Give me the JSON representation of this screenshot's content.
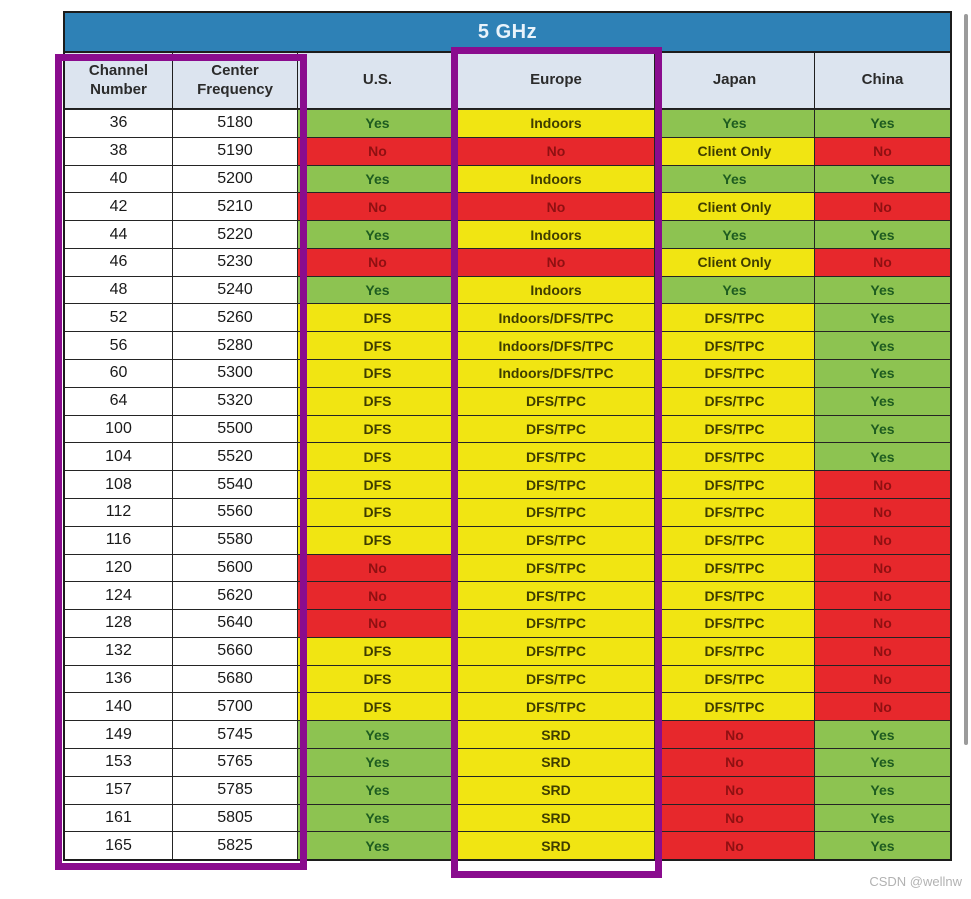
{
  "title": "5 GHz",
  "columns": [
    "Channel Number",
    "Center Frequency",
    "U.S.",
    "Europe",
    "Japan",
    "China"
  ],
  "colors": {
    "title_band_bg": "#2e81b6",
    "header_row_bg": "#dce4ef",
    "allowed_green": "#8dc351",
    "conditional_yellow": "#f1e512",
    "not_allowed_red": "#e7282c",
    "highlight_purple": "#8a0c8e"
  },
  "rows": [
    {
      "channel": "36",
      "frequency": "5180",
      "us": [
        "Yes",
        "green"
      ],
      "europe": [
        "Indoors",
        "yellow"
      ],
      "japan": [
        "Yes",
        "green"
      ],
      "china": [
        "Yes",
        "green"
      ]
    },
    {
      "channel": "38",
      "frequency": "5190",
      "us": [
        "No",
        "red"
      ],
      "europe": [
        "No",
        "red"
      ],
      "japan": [
        "Client Only",
        "yellow"
      ],
      "china": [
        "No",
        "red"
      ]
    },
    {
      "channel": "40",
      "frequency": "5200",
      "us": [
        "Yes",
        "green"
      ],
      "europe": [
        "Indoors",
        "yellow"
      ],
      "japan": [
        "Yes",
        "green"
      ],
      "china": [
        "Yes",
        "green"
      ]
    },
    {
      "channel": "42",
      "frequency": "5210",
      "us": [
        "No",
        "red"
      ],
      "europe": [
        "No",
        "red"
      ],
      "japan": [
        "Client Only",
        "yellow"
      ],
      "china": [
        "No",
        "red"
      ]
    },
    {
      "channel": "44",
      "frequency": "5220",
      "us": [
        "Yes",
        "green"
      ],
      "europe": [
        "Indoors",
        "yellow"
      ],
      "japan": [
        "Yes",
        "green"
      ],
      "china": [
        "Yes",
        "green"
      ]
    },
    {
      "channel": "46",
      "frequency": "5230",
      "us": [
        "No",
        "red"
      ],
      "europe": [
        "No",
        "red"
      ],
      "japan": [
        "Client Only",
        "yellow"
      ],
      "china": [
        "No",
        "red"
      ]
    },
    {
      "channel": "48",
      "frequency": "5240",
      "us": [
        "Yes",
        "green"
      ],
      "europe": [
        "Indoors",
        "yellow"
      ],
      "japan": [
        "Yes",
        "green"
      ],
      "china": [
        "Yes",
        "green"
      ]
    },
    {
      "channel": "52",
      "frequency": "5260",
      "us": [
        "DFS",
        "yellow"
      ],
      "europe": [
        "Indoors/DFS/TPC",
        "yellow"
      ],
      "japan": [
        "DFS/TPC",
        "yellow"
      ],
      "china": [
        "Yes",
        "green"
      ]
    },
    {
      "channel": "56",
      "frequency": "5280",
      "us": [
        "DFS",
        "yellow"
      ],
      "europe": [
        "Indoors/DFS/TPC",
        "yellow"
      ],
      "japan": [
        "DFS/TPC",
        "yellow"
      ],
      "china": [
        "Yes",
        "green"
      ]
    },
    {
      "channel": "60",
      "frequency": "5300",
      "us": [
        "DFS",
        "yellow"
      ],
      "europe": [
        "Indoors/DFS/TPC",
        "yellow"
      ],
      "japan": [
        "DFS/TPC",
        "yellow"
      ],
      "china": [
        "Yes",
        "green"
      ]
    },
    {
      "channel": "64",
      "frequency": "5320",
      "us": [
        "DFS",
        "yellow"
      ],
      "europe": [
        "DFS/TPC",
        "yellow"
      ],
      "japan": [
        "DFS/TPC",
        "yellow"
      ],
      "china": [
        "Yes",
        "green"
      ]
    },
    {
      "channel": "100",
      "frequency": "5500",
      "us": [
        "DFS",
        "yellow"
      ],
      "europe": [
        "DFS/TPC",
        "yellow"
      ],
      "japan": [
        "DFS/TPC",
        "yellow"
      ],
      "china": [
        "Yes",
        "green"
      ]
    },
    {
      "channel": "104",
      "frequency": "5520",
      "us": [
        "DFS",
        "yellow"
      ],
      "europe": [
        "DFS/TPC",
        "yellow"
      ],
      "japan": [
        "DFS/TPC",
        "yellow"
      ],
      "china": [
        "Yes",
        "green"
      ]
    },
    {
      "channel": "108",
      "frequency": "5540",
      "us": [
        "DFS",
        "yellow"
      ],
      "europe": [
        "DFS/TPC",
        "yellow"
      ],
      "japan": [
        "DFS/TPC",
        "yellow"
      ],
      "china": [
        "No",
        "red"
      ]
    },
    {
      "channel": "112",
      "frequency": "5560",
      "us": [
        "DFS",
        "yellow"
      ],
      "europe": [
        "DFS/TPC",
        "yellow"
      ],
      "japan": [
        "DFS/TPC",
        "yellow"
      ],
      "china": [
        "No",
        "red"
      ]
    },
    {
      "channel": "116",
      "frequency": "5580",
      "us": [
        "DFS",
        "yellow"
      ],
      "europe": [
        "DFS/TPC",
        "yellow"
      ],
      "japan": [
        "DFS/TPC",
        "yellow"
      ],
      "china": [
        "No",
        "red"
      ]
    },
    {
      "channel": "120",
      "frequency": "5600",
      "us": [
        "No",
        "red"
      ],
      "europe": [
        "DFS/TPC",
        "yellow"
      ],
      "japan": [
        "DFS/TPC",
        "yellow"
      ],
      "china": [
        "No",
        "red"
      ]
    },
    {
      "channel": "124",
      "frequency": "5620",
      "us": [
        "No",
        "red"
      ],
      "europe": [
        "DFS/TPC",
        "yellow"
      ],
      "japan": [
        "DFS/TPC",
        "yellow"
      ],
      "china": [
        "No",
        "red"
      ]
    },
    {
      "channel": "128",
      "frequency": "5640",
      "us": [
        "No",
        "red"
      ],
      "europe": [
        "DFS/TPC",
        "yellow"
      ],
      "japan": [
        "DFS/TPC",
        "yellow"
      ],
      "china": [
        "No",
        "red"
      ]
    },
    {
      "channel": "132",
      "frequency": "5660",
      "us": [
        "DFS",
        "yellow"
      ],
      "europe": [
        "DFS/TPC",
        "yellow"
      ],
      "japan": [
        "DFS/TPC",
        "yellow"
      ],
      "china": [
        "No",
        "red"
      ]
    },
    {
      "channel": "136",
      "frequency": "5680",
      "us": [
        "DFS",
        "yellow"
      ],
      "europe": [
        "DFS/TPC",
        "yellow"
      ],
      "japan": [
        "DFS/TPC",
        "yellow"
      ],
      "china": [
        "No",
        "red"
      ]
    },
    {
      "channel": "140",
      "frequency": "5700",
      "us": [
        "DFS",
        "yellow"
      ],
      "europe": [
        "DFS/TPC",
        "yellow"
      ],
      "japan": [
        "DFS/TPC",
        "yellow"
      ],
      "china": [
        "No",
        "red"
      ]
    },
    {
      "channel": "149",
      "frequency": "5745",
      "us": [
        "Yes",
        "green"
      ],
      "europe": [
        "SRD",
        "yellow"
      ],
      "japan": [
        "No",
        "red"
      ],
      "china": [
        "Yes",
        "green"
      ]
    },
    {
      "channel": "153",
      "frequency": "5765",
      "us": [
        "Yes",
        "green"
      ],
      "europe": [
        "SRD",
        "yellow"
      ],
      "japan": [
        "No",
        "red"
      ],
      "china": [
        "Yes",
        "green"
      ]
    },
    {
      "channel": "157",
      "frequency": "5785",
      "us": [
        "Yes",
        "green"
      ],
      "europe": [
        "SRD",
        "yellow"
      ],
      "japan": [
        "No",
        "red"
      ],
      "china": [
        "Yes",
        "green"
      ]
    },
    {
      "channel": "161",
      "frequency": "5805",
      "us": [
        "Yes",
        "green"
      ],
      "europe": [
        "SRD",
        "yellow"
      ],
      "japan": [
        "No",
        "red"
      ],
      "china": [
        "Yes",
        "green"
      ]
    },
    {
      "channel": "165",
      "frequency": "5825",
      "us": [
        "Yes",
        "green"
      ],
      "europe": [
        "SRD",
        "yellow"
      ],
      "japan": [
        "No",
        "red"
      ],
      "china": [
        "Yes",
        "green"
      ]
    }
  ],
  "watermark": "CSDN @wellnw"
}
